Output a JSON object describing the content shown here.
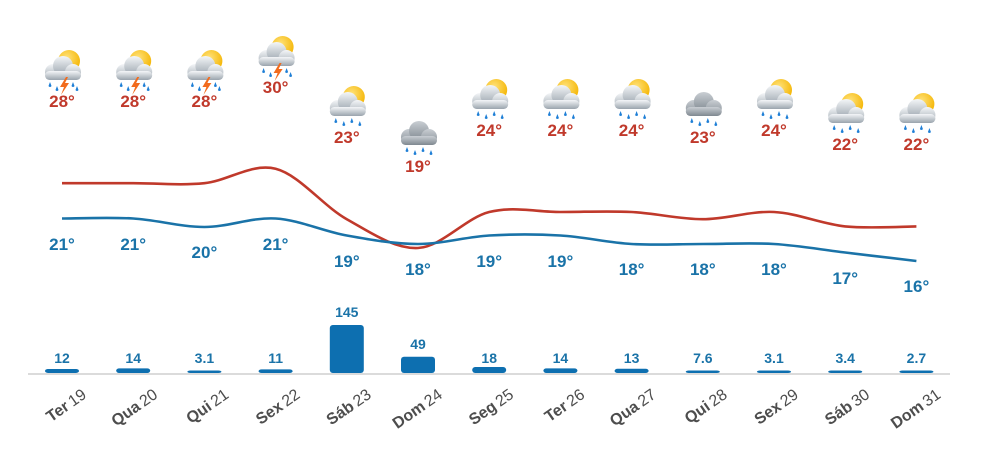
{
  "chart_data": {
    "type": "line",
    "categories": [
      "Ter 19",
      "Qua 20",
      "Qui 21",
      "Sex 22",
      "Sáb 23",
      "Dom 24",
      "Seg 25",
      "Ter 26",
      "Qua 27",
      "Qui 28",
      "Sex 29",
      "Sáb 30",
      "Dom 31"
    ],
    "day_names": [
      "Ter",
      "Qua",
      "Qui",
      "Sex",
      "Sáb",
      "Dom",
      "Seg",
      "Ter",
      "Qua",
      "Qui",
      "Sex",
      "Sáb",
      "Dom"
    ],
    "day_numbers": [
      "19",
      "20",
      "21",
      "22",
      "23",
      "24",
      "25",
      "26",
      "27",
      "28",
      "29",
      "30",
      "31"
    ],
    "weather_icons": [
      "thunderstorm-sun-icon",
      "thunderstorm-sun-icon",
      "thunderstorm-sun-icon",
      "thunderstorm-sun-icon",
      "rain-sun-icon",
      "rain-cloud-icon",
      "rain-sun-icon",
      "rain-sun-icon",
      "rain-sun-icon",
      "rain-cloud-icon",
      "rain-sun-icon",
      "rain-sun-icon",
      "rain-sun-icon"
    ],
    "series": [
      {
        "values": [
          28,
          28,
          28,
          30,
          23,
          19,
          24,
          24,
          24,
          23,
          24,
          22,
          22
        ],
        "color": "#c0392b"
      },
      {
        "values": [
          21,
          21,
          20,
          21,
          19,
          18,
          19,
          19,
          18,
          18,
          18,
          17,
          16
        ],
        "color": "#1a73a8"
      },
      {
        "type": "bar",
        "values": [
          12,
          14,
          3.1,
          11,
          145,
          49,
          18,
          14,
          13,
          7.6,
          3.1,
          3.4,
          2.7
        ],
        "color": "#0d6fb0"
      }
    ],
    "labels": {
      "max": [
        "28°",
        "28°",
        "28°",
        "30°",
        "23°",
        "19°",
        "24°",
        "24°",
        "24°",
        "23°",
        "24°",
        "22°",
        "22°"
      ],
      "min": [
        "21°",
        "21°",
        "20°",
        "21°",
        "19°",
        "18°",
        "19°",
        "19°",
        "18°",
        "18°",
        "18°",
        "17°",
        "16°"
      ],
      "precip": [
        "12",
        "14",
        "3.1",
        "11",
        "145",
        "49",
        "18",
        "14",
        "13",
        "7.6",
        "3.1",
        "3.4",
        "2.7"
      ]
    },
    "grid": false,
    "legend": "none"
  }
}
